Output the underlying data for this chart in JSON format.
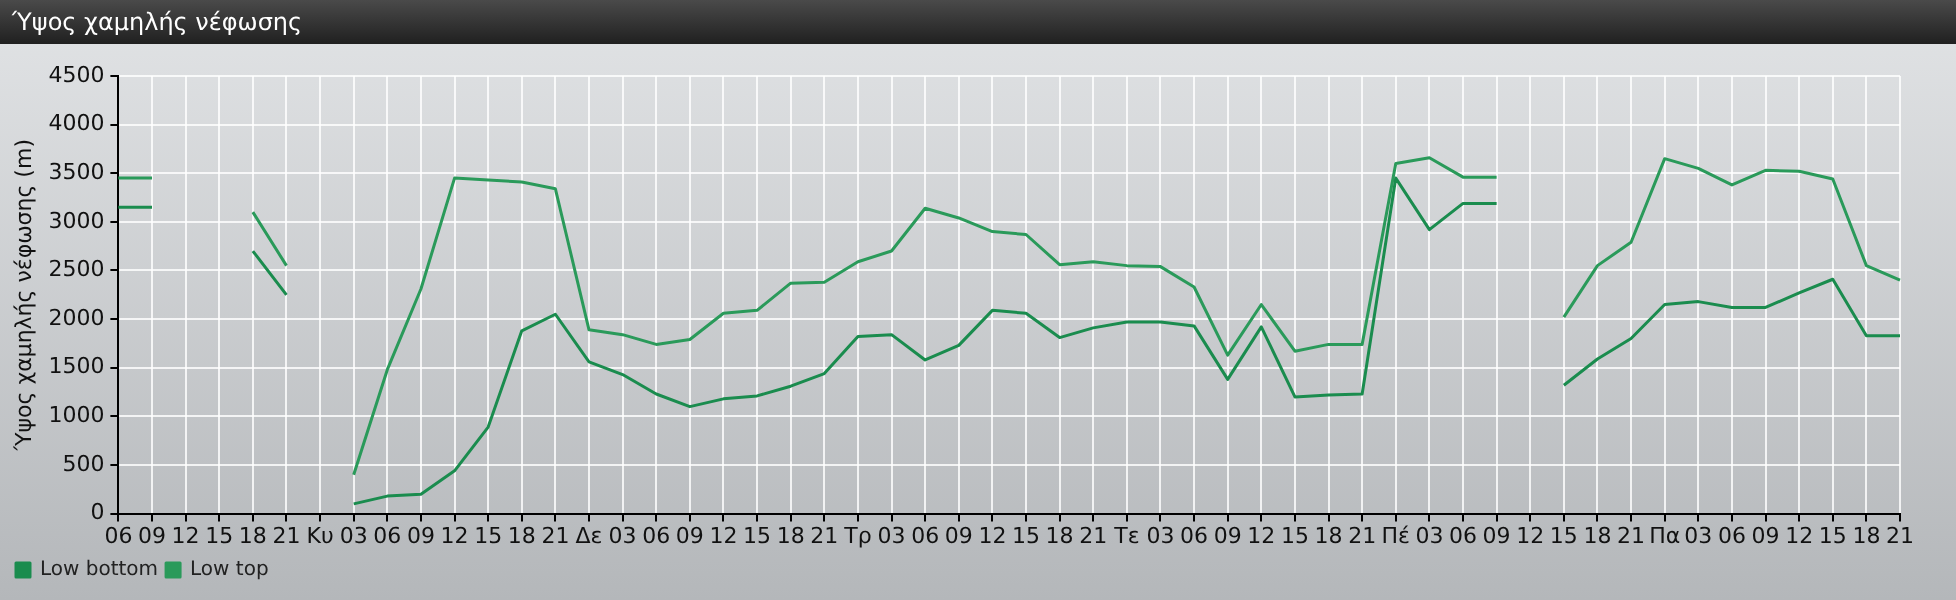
{
  "chart_data": {
    "type": "line",
    "title": "Ύψος χαμηλής νέφωσης",
    "ylabel": "Ύψος χαμηλής νέφωσης (m)",
    "categories": [
      "06",
      "09",
      "12",
      "15",
      "18",
      "21",
      "Κυ",
      "03",
      "06",
      "09",
      "12",
      "15",
      "18",
      "21",
      "Δε",
      "03",
      "06",
      "09",
      "12",
      "15",
      "18",
      "21",
      "Τρ",
      "03",
      "06",
      "09",
      "12",
      "15",
      "18",
      "21",
      "Τε",
      "03",
      "06",
      "09",
      "12",
      "15",
      "18",
      "21",
      "Πέ",
      "03",
      "06",
      "09",
      "12",
      "15",
      "18",
      "21",
      "Πα",
      "03",
      "06",
      "09",
      "12",
      "15",
      "18",
      "21"
    ],
    "ylim": [
      0,
      4500
    ],
    "yticks": [
      0,
      500,
      1000,
      1500,
      2000,
      2500,
      3000,
      3500,
      4000,
      4500
    ],
    "grid": true,
    "legend": "bottom left",
    "marker": "none",
    "line_style": "solid",
    "series": [
      {
        "name": "Low bottom",
        "color": "#1a8c4e",
        "values": [
          3150,
          3150,
          null,
          null,
          2700,
          2250,
          null,
          100,
          180,
          200,
          440,
          890,
          1880,
          2050,
          1560,
          1430,
          1230,
          1100,
          1180,
          1210,
          1310,
          1440,
          1820,
          1840,
          1580,
          1730,
          2090,
          2060,
          1810,
          1910,
          1970,
          1970,
          1930,
          1380,
          1920,
          1200,
          1220,
          1230,
          3450,
          2920,
          3190,
          3190,
          null,
          1320,
          1590,
          1800,
          2150,
          2180,
          2120,
          2120,
          2270,
          2410,
          1830,
          1830
        ]
      },
      {
        "name": "Low top",
        "color": "#2a9a5a",
        "values": [
          3450,
          3450,
          null,
          null,
          3100,
          2550,
          null,
          400,
          1480,
          2310,
          3450,
          3430,
          3410,
          3340,
          1890,
          1840,
          1740,
          1790,
          2060,
          2090,
          2370,
          2380,
          2590,
          2700,
          3140,
          3040,
          2900,
          2870,
          2560,
          2590,
          2550,
          2540,
          2330,
          1630,
          2150,
          1670,
          1740,
          1740,
          3600,
          3660,
          3460,
          3460,
          null,
          2020,
          2550,
          2790,
          3650,
          3550,
          3380,
          3530,
          3520,
          3440,
          2550,
          2400
        ]
      }
    ]
  }
}
